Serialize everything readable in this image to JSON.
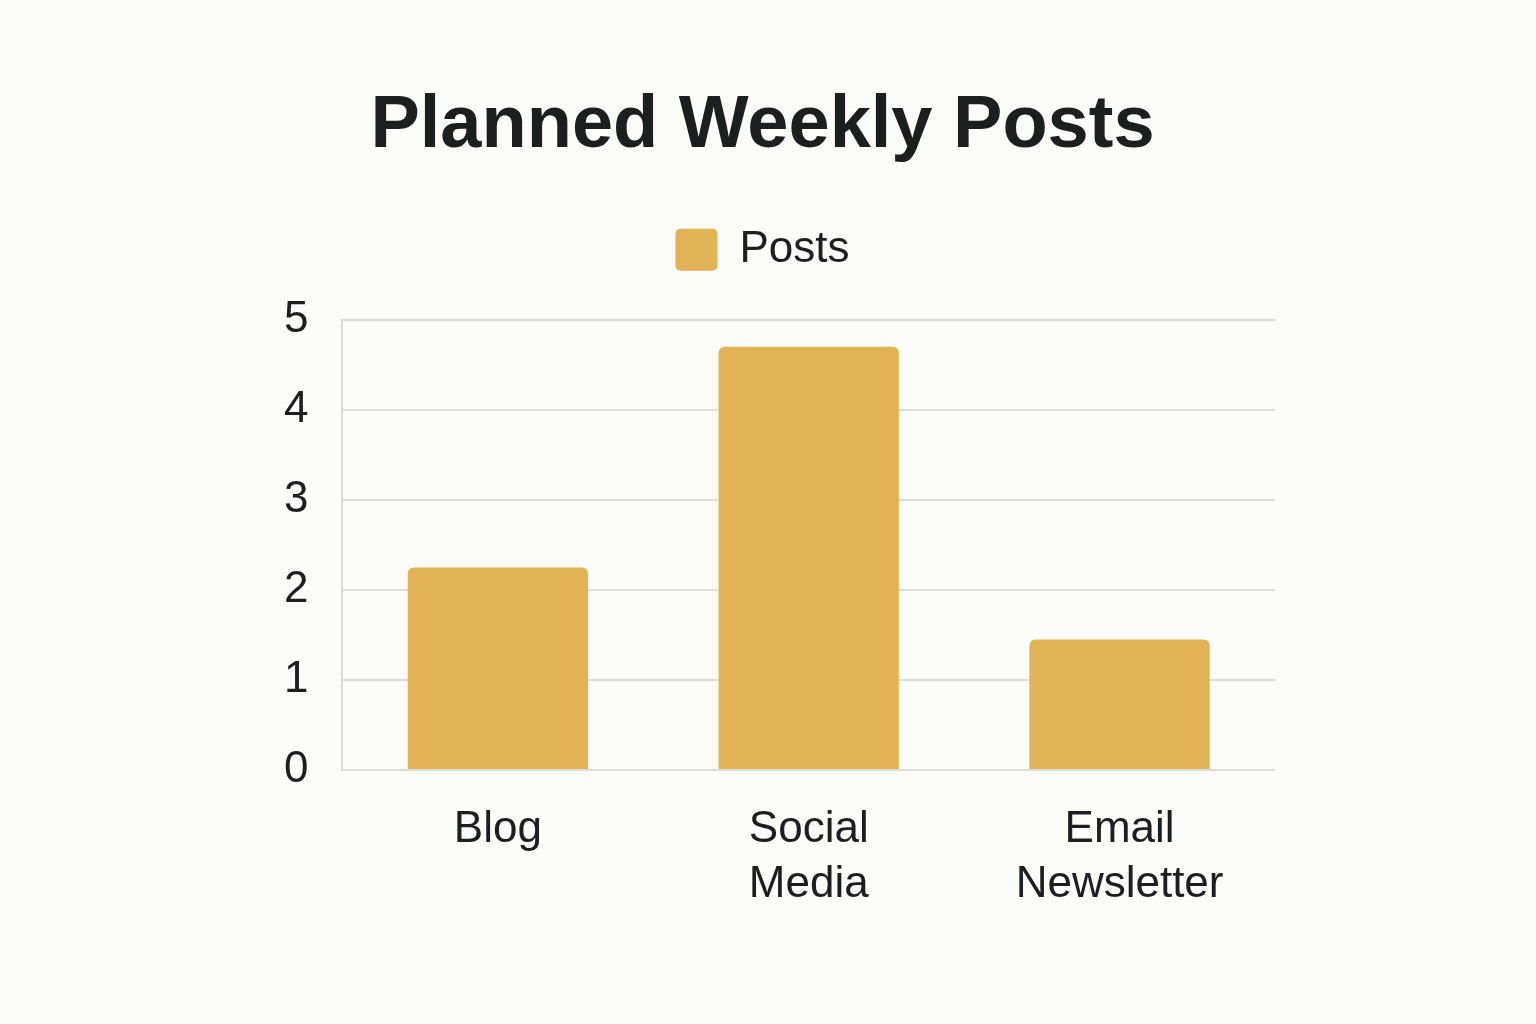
{
  "chart_data": {
    "type": "bar",
    "title": "Planned Weekly Posts",
    "categories": [
      "Blog",
      "Social Media",
      "Email Newsletter"
    ],
    "series": [
      {
        "name": "Posts",
        "color": "#e1b354",
        "values": [
          2.25,
          4.7,
          1.45
        ]
      }
    ],
    "ylim": [
      0,
      5
    ],
    "yticks": [
      0,
      1,
      2,
      3,
      4,
      5
    ],
    "grid": "y",
    "legend": "top"
  }
}
